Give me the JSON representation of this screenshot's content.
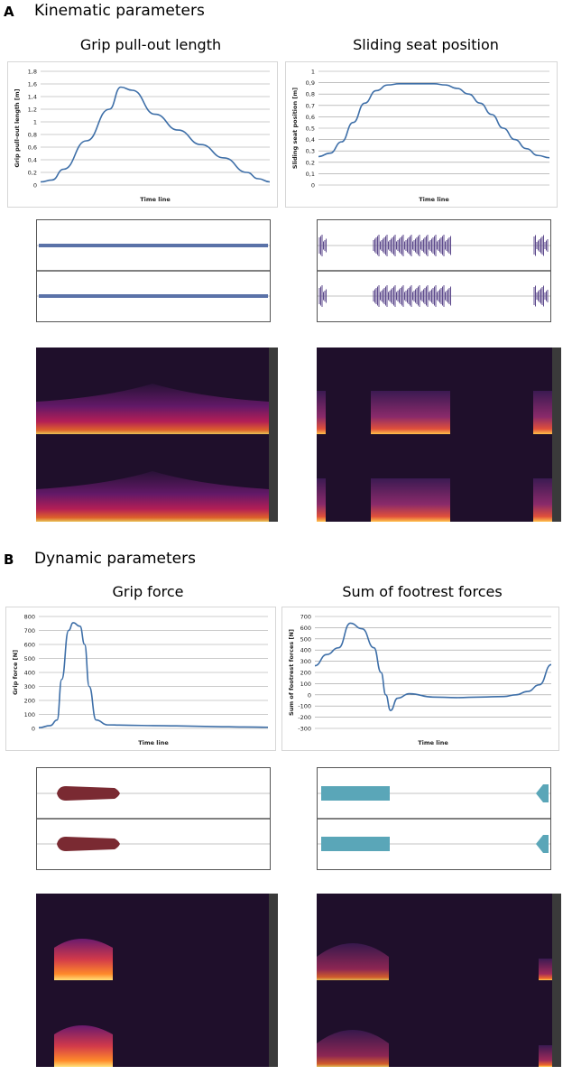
{
  "sections": [
    {
      "letter": "A",
      "title": "Kinematic parameters"
    },
    {
      "letter": "B",
      "title": "Dynamic parameters"
    }
  ],
  "plot_titles": [
    "Grip pull-out length",
    "Sliding seat position",
    "Grip force",
    "Sum of footrest forces"
  ],
  "colors": {
    "line": "#3e6fa8",
    "wave_purple": "#5d4a8c",
    "wave_dark_red": "#7a2a32",
    "wave_teal": "#5aa6b8",
    "spectrogram_bg": "#1f0f2b"
  },
  "chart_data": [
    {
      "type": "line",
      "title": "",
      "xlabel": "Time line",
      "ylabel": "Grip pull-out length [m]",
      "ylim": [
        0,
        1.8
      ],
      "yticks": [
        0,
        0.2,
        0.4,
        0.6,
        0.8,
        1,
        1.2,
        1.4,
        1.6,
        1.8
      ],
      "ytick_labels": [
        "0",
        "0,2",
        "0,4",
        "0,6",
        "0,8",
        "1",
        "1,2",
        "1,4",
        "1,6",
        "1,8"
      ],
      "x": [
        0,
        0.05,
        0.1,
        0.2,
        0.3,
        0.35,
        0.4,
        0.5,
        0.6,
        0.7,
        0.8,
        0.9,
        0.95,
        1
      ],
      "values": [
        0.05,
        0.08,
        0.25,
        0.7,
        1.2,
        1.55,
        1.5,
        1.12,
        0.87,
        0.64,
        0.43,
        0.2,
        0.1,
        0.05
      ]
    },
    {
      "type": "line",
      "title": "",
      "xlabel": "Time line",
      "ylabel": "Sliding seat position [m]",
      "ylim": [
        0,
        1
      ],
      "yticks": [
        0,
        0.1,
        0.2,
        0.3,
        0.4,
        0.5,
        0.6,
        0.7,
        0.8,
        0.9,
        1
      ],
      "ytick_labels": [
        "0",
        "0,1",
        "0,2",
        "0,3",
        "0,4",
        "0,5",
        "0,6",
        "0,7",
        "0,8",
        "0,9",
        "1"
      ],
      "x": [
        0,
        0.05,
        0.1,
        0.15,
        0.2,
        0.25,
        0.3,
        0.35,
        0.4,
        0.5,
        0.55,
        0.6,
        0.65,
        0.7,
        0.75,
        0.8,
        0.85,
        0.9,
        0.95,
        1
      ],
      "values": [
        0.25,
        0.28,
        0.38,
        0.55,
        0.72,
        0.83,
        0.88,
        0.89,
        0.89,
        0.89,
        0.88,
        0.85,
        0.8,
        0.72,
        0.62,
        0.5,
        0.4,
        0.32,
        0.26,
        0.24
      ]
    },
    {
      "type": "line",
      "title": "",
      "xlabel": "Time line",
      "ylabel": "Grip force [N]",
      "ylim": [
        0,
        800
      ],
      "yticks": [
        0,
        100,
        200,
        300,
        400,
        500,
        600,
        700,
        800
      ],
      "ytick_labels": [
        "0",
        "100",
        "200",
        "300",
        "400",
        "500",
        "600",
        "700",
        "800"
      ],
      "x": [
        0,
        0.05,
        0.08,
        0.1,
        0.13,
        0.15,
        0.18,
        0.2,
        0.22,
        0.25,
        0.3,
        0.4,
        0.5,
        0.6,
        0.7,
        0.8,
        0.9,
        1
      ],
      "values": [
        5,
        20,
        60,
        350,
        700,
        755,
        730,
        600,
        300,
        60,
        25,
        22,
        20,
        18,
        15,
        12,
        10,
        8
      ]
    },
    {
      "type": "line",
      "title": "",
      "xlabel": "Time line",
      "ylabel": "Sum of footrest forces [N]",
      "ylim": [
        -300,
        700
      ],
      "yticks": [
        -300,
        -200,
        -100,
        0,
        100,
        200,
        300,
        400,
        500,
        600,
        700
      ],
      "ytick_labels": [
        "-300",
        "-200",
        "-100",
        "0",
        "100",
        "200",
        "300",
        "400",
        "500",
        "600",
        "700"
      ],
      "x": [
        0,
        0.05,
        0.1,
        0.15,
        0.2,
        0.25,
        0.28,
        0.3,
        0.32,
        0.35,
        0.4,
        0.5,
        0.6,
        0.7,
        0.8,
        0.85,
        0.9,
        0.95,
        1
      ],
      "values": [
        260,
        360,
        420,
        640,
        590,
        420,
        200,
        0,
        -140,
        -30,
        10,
        -20,
        -25,
        -20,
        -15,
        0,
        30,
        90,
        270
      ]
    }
  ]
}
